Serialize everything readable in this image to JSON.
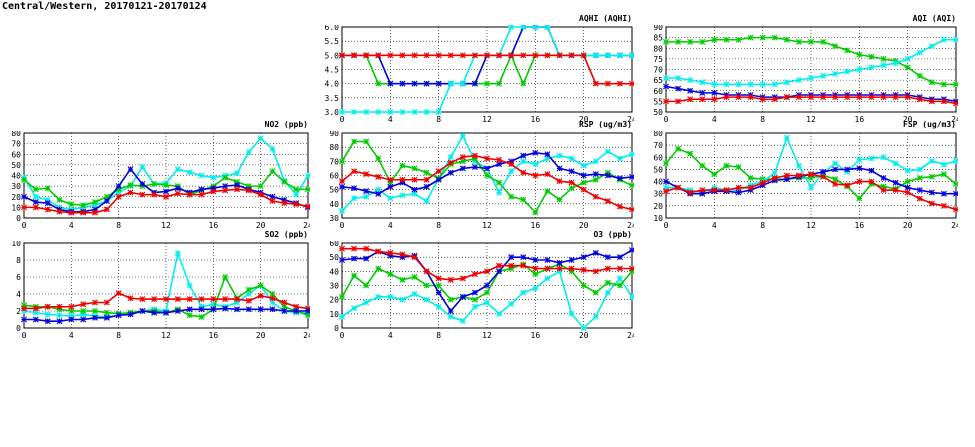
{
  "title": "Central/Western, 20170121-20170124",
  "colors": {
    "green": "#00cc00",
    "blue": "#0000dd",
    "red": "#ee0000",
    "cyan": "#00eeee"
  },
  "chart_data": [
    {
      "id": "aqhi",
      "type": "line",
      "title": "AQHI (AQHI)",
      "x": [
        0,
        1,
        2,
        3,
        4,
        5,
        6,
        7,
        8,
        9,
        10,
        11,
        12,
        13,
        14,
        15,
        16,
        17,
        18,
        19,
        20,
        21,
        22,
        23,
        24
      ],
      "xticks": [
        "0",
        "4",
        "8",
        "12",
        "16",
        "20",
        "24"
      ],
      "ylim": [
        3.0,
        6.0
      ],
      "yticks": [
        "3.0",
        "3.5",
        "4.0",
        "4.5",
        "5.0",
        "5.5",
        "6.0"
      ],
      "series": [
        {
          "color": "green",
          "values": [
            5,
            5,
            5,
            4,
            4,
            4,
            4,
            4,
            4,
            4,
            4,
            4,
            4,
            4,
            5,
            4,
            5,
            5,
            5,
            5,
            5,
            5,
            5,
            5,
            5
          ]
        },
        {
          "color": "blue",
          "values": [
            5,
            5,
            5,
            5,
            4,
            4,
            4,
            4,
            4,
            4,
            4,
            4,
            5,
            5,
            5,
            6,
            6,
            6,
            5,
            5,
            5,
            5,
            5,
            5,
            5
          ]
        },
        {
          "color": "cyan",
          "values": [
            3,
            3,
            3,
            3,
            3,
            3,
            3,
            3,
            3,
            4,
            4,
            5,
            5,
            5,
            6,
            6,
            6,
            6,
            5,
            5,
            5,
            5,
            5,
            5,
            5
          ]
        },
        {
          "color": "red",
          "values": [
            5,
            5,
            5,
            5,
            5,
            5,
            5,
            5,
            5,
            5,
            5,
            5,
            5,
            5,
            5,
            5,
            5,
            5,
            5,
            5,
            5,
            4,
            4,
            4,
            4
          ]
        }
      ]
    },
    {
      "id": "aqi",
      "type": "line",
      "title": "AQI (AQI)",
      "x": [
        0,
        1,
        2,
        3,
        4,
        5,
        6,
        7,
        8,
        9,
        10,
        11,
        12,
        13,
        14,
        15,
        16,
        17,
        18,
        19,
        20,
        21,
        22,
        23,
        24
      ],
      "xticks": [
        "0",
        "4",
        "8",
        "12",
        "16",
        "20",
        "24"
      ],
      "ylim": [
        50,
        90
      ],
      "yticks": [
        "50",
        "55",
        "60",
        "65",
        "70",
        "75",
        "80",
        "85",
        "90"
      ],
      "series": [
        {
          "color": "green",
          "values": [
            83,
            83,
            83,
            83,
            84,
            84,
            84,
            85,
            85,
            85,
            84,
            83,
            83,
            83,
            81,
            79,
            77,
            76,
            75,
            74,
            71,
            67,
            64,
            63,
            63
          ]
        },
        {
          "color": "cyan",
          "values": [
            66,
            66,
            65,
            64,
            63,
            63,
            63,
            63,
            63,
            63,
            64,
            65,
            66,
            67,
            68,
            69,
            70,
            71,
            72,
            73,
            75,
            78,
            81,
            84,
            84
          ]
        },
        {
          "color": "blue",
          "values": [
            62,
            61,
            60,
            59,
            59,
            58,
            58,
            58,
            57,
            57,
            57,
            58,
            58,
            58,
            58,
            58,
            58,
            58,
            58,
            58,
            58,
            57,
            56,
            56,
            55
          ]
        },
        {
          "color": "red",
          "values": [
            55,
            55,
            56,
            56,
            56,
            57,
            57,
            57,
            56,
            56,
            57,
            57,
            57,
            57,
            57,
            57,
            57,
            57,
            57,
            57,
            57,
            56,
            55,
            55,
            54
          ]
        }
      ]
    },
    {
      "id": "no2",
      "type": "line",
      "title": "NO2 (ppb)",
      "x": [
        0,
        1,
        2,
        3,
        4,
        5,
        6,
        7,
        8,
        9,
        10,
        11,
        12,
        13,
        14,
        15,
        16,
        17,
        18,
        19,
        20,
        21,
        22,
        23,
        24
      ],
      "xticks": [
        "0",
        "4",
        "8",
        "12",
        "16",
        "20",
        "24"
      ],
      "ylim": [
        0,
        80
      ],
      "yticks": [
        "0",
        "10",
        "20",
        "30",
        "40",
        "50",
        "60",
        "70",
        "80"
      ],
      "series": [
        {
          "color": "cyan",
          "values": [
            38,
            20,
            17,
            10,
            8,
            10,
            12,
            16,
            24,
            30,
            48,
            32,
            33,
            46,
            43,
            40,
            38,
            40,
            42,
            62,
            75,
            65,
            35,
            22,
            40
          ]
        },
        {
          "color": "green",
          "values": [
            36,
            27,
            28,
            17,
            13,
            12,
            15,
            20,
            27,
            31,
            30,
            32,
            31,
            30,
            22,
            26,
            30,
            38,
            34,
            30,
            30,
            44,
            34,
            27,
            27
          ]
        },
        {
          "color": "blue",
          "values": [
            20,
            15,
            14,
            8,
            6,
            6,
            8,
            16,
            30,
            46,
            32,
            24,
            25,
            28,
            24,
            27,
            28,
            30,
            31,
            27,
            24,
            20,
            17,
            14,
            10
          ]
        },
        {
          "color": "red",
          "values": [
            10,
            10,
            8,
            6,
            5,
            5,
            5,
            8,
            20,
            24,
            22,
            22,
            20,
            23,
            22,
            22,
            25,
            26,
            27,
            26,
            22,
            16,
            14,
            13,
            11
          ]
        }
      ]
    },
    {
      "id": "rsp",
      "type": "line",
      "title": "RSP (ug/m3)",
      "x": [
        0,
        1,
        2,
        3,
        4,
        5,
        6,
        7,
        8,
        9,
        10,
        11,
        12,
        13,
        14,
        15,
        16,
        17,
        18,
        19,
        20,
        21,
        22,
        23,
        24
      ],
      "xticks": [
        "0",
        "4",
        "8",
        "12",
        "16",
        "20",
        "24"
      ],
      "ylim": [
        30,
        90
      ],
      "yticks": [
        "30",
        "40",
        "50",
        "60",
        "70",
        "80",
        "90"
      ],
      "series": [
        {
          "color": "cyan",
          "values": [
            35,
            44,
            45,
            50,
            44,
            46,
            47,
            42,
            58,
            73,
            88,
            70,
            65,
            48,
            63,
            70,
            68,
            72,
            74,
            72,
            67,
            70,
            77,
            72,
            75
          ]
        },
        {
          "color": "green",
          "values": [
            70,
            84,
            84,
            72,
            55,
            67,
            65,
            62,
            58,
            68,
            70,
            72,
            60,
            55,
            45,
            43,
            34,
            49,
            43,
            51,
            55,
            57,
            62,
            57,
            53
          ]
        },
        {
          "color": "blue",
          "values": [
            52,
            51,
            49,
            47,
            52,
            55,
            50,
            52,
            57,
            62,
            65,
            66,
            65,
            68,
            70,
            74,
            76,
            75,
            65,
            63,
            60,
            61,
            60,
            58,
            59
          ]
        },
        {
          "color": "red",
          "values": [
            56,
            63,
            61,
            59,
            57,
            57,
            57,
            57,
            63,
            69,
            73,
            74,
            72,
            71,
            68,
            62,
            60,
            61,
            56,
            55,
            50,
            45,
            42,
            38,
            36
          ]
        }
      ]
    },
    {
      "id": "fsp",
      "type": "line",
      "title": "FSP (ug/m3)",
      "x": [
        0,
        1,
        2,
        3,
        4,
        5,
        6,
        7,
        8,
        9,
        10,
        11,
        12,
        13,
        14,
        15,
        16,
        17,
        18,
        19,
        20,
        21,
        22,
        23,
        24
      ],
      "xticks": [
        "0",
        "4",
        "8",
        "12",
        "16",
        "20",
        "24"
      ],
      "ylim": [
        10,
        80
      ],
      "yticks": [
        "10",
        "20",
        "30",
        "40",
        "50",
        "60",
        "70",
        "80"
      ],
      "series": [
        {
          "color": "green",
          "values": [
            55,
            67,
            63,
            53,
            46,
            53,
            52,
            43,
            42,
            42,
            42,
            43,
            43,
            45,
            42,
            36,
            26,
            38,
            36,
            34,
            40,
            43,
            44,
            46,
            38
          ]
        },
        {
          "color": "cyan",
          "values": [
            35,
            35,
            33,
            31,
            35,
            33,
            33,
            37,
            40,
            47,
            76,
            53,
            35,
            47,
            55,
            48,
            58,
            59,
            60,
            55,
            49,
            50,
            57,
            54,
            57
          ]
        },
        {
          "color": "blue",
          "values": [
            40,
            35,
            30,
            30,
            32,
            32,
            31,
            33,
            37,
            41,
            42,
            44,
            46,
            48,
            50,
            50,
            51,
            49,
            43,
            39,
            35,
            33,
            31,
            30,
            30
          ]
        },
        {
          "color": "red",
          "values": [
            32,
            35,
            31,
            33,
            33,
            33,
            35,
            35,
            39,
            43,
            45,
            45,
            46,
            44,
            38,
            37,
            40,
            40,
            33,
            33,
            31,
            26,
            22,
            20,
            17
          ]
        }
      ]
    },
    {
      "id": "so2",
      "type": "line",
      "title": "SO2 (ppb)",
      "x": [
        0,
        1,
        2,
        3,
        4,
        5,
        6,
        7,
        8,
        9,
        10,
        11,
        12,
        13,
        14,
        15,
        16,
        17,
        18,
        19,
        20,
        21,
        22,
        23,
        24
      ],
      "xticks": [
        "0",
        "4",
        "8",
        "12",
        "16",
        "20",
        "24"
      ],
      "ylim": [
        0,
        10
      ],
      "yticks": [
        "0",
        "2",
        "4",
        "6",
        "8",
        "10"
      ],
      "series": [
        {
          "color": "cyan",
          "values": [
            2.0,
            1.8,
            1.6,
            1.5,
            1.4,
            1.6,
            1.4,
            1.3,
            1.5,
            1.8,
            2.0,
            2.2,
            2.0,
            8.8,
            5.0,
            2.5,
            2.8,
            2.5,
            3.0,
            4.0,
            5.0,
            3.0,
            2.0,
            1.8,
            1.8
          ]
        },
        {
          "color": "green",
          "values": [
            2.7,
            2.5,
            2.5,
            2.2,
            2.0,
            2.0,
            2.0,
            1.8,
            1.7,
            1.8,
            2.0,
            2.0,
            1.8,
            2.2,
            1.5,
            1.3,
            2.2,
            6.0,
            3.5,
            4.5,
            5.0,
            4.0,
            2.5,
            2.0,
            1.5
          ]
        },
        {
          "color": "red",
          "values": [
            2.3,
            2.3,
            2.5,
            2.5,
            2.5,
            2.8,
            3.0,
            3.0,
            4.1,
            3.5,
            3.4,
            3.4,
            3.4,
            3.4,
            3.4,
            3.4,
            3.4,
            3.4,
            3.4,
            3.2,
            3.8,
            3.5,
            3.0,
            2.5,
            2.3
          ]
        },
        {
          "color": "blue",
          "values": [
            1.0,
            1.0,
            0.8,
            0.8,
            1.0,
            1.0,
            1.2,
            1.2,
            1.5,
            1.6,
            2.0,
            1.8,
            1.8,
            2.0,
            2.2,
            2.2,
            2.2,
            2.3,
            2.2,
            2.2,
            2.2,
            2.2,
            2.0,
            2.0,
            2.0
          ]
        }
      ]
    },
    {
      "id": "o3",
      "type": "line",
      "title": "O3 (ppb)",
      "x": [
        0,
        1,
        2,
        3,
        4,
        5,
        6,
        7,
        8,
        9,
        10,
        11,
        12,
        13,
        14,
        15,
        16,
        17,
        18,
        19,
        20,
        21,
        22,
        23,
        24
      ],
      "xticks": [
        "0",
        "4",
        "8",
        "12",
        "16",
        "20",
        "24"
      ],
      "ylim": [
        0,
        60
      ],
      "yticks": [
        "0",
        "10",
        "20",
        "30",
        "40",
        "50",
        "60"
      ],
      "series": [
        {
          "color": "cyan",
          "values": [
            8,
            14,
            18,
            22,
            22,
            20,
            24,
            20,
            15,
            8,
            5,
            15,
            18,
            10,
            17,
            25,
            28,
            35,
            40,
            10,
            0,
            8,
            25,
            35,
            22
          ]
        },
        {
          "color": "green",
          "values": [
            22,
            37,
            30,
            42,
            38,
            34,
            36,
            30,
            30,
            20,
            22,
            20,
            25,
            40,
            42,
            45,
            38,
            42,
            45,
            40,
            30,
            25,
            32,
            30,
            40
          ]
        },
        {
          "color": "blue",
          "values": [
            48,
            49,
            49,
            54,
            51,
            50,
            51,
            40,
            25,
            12,
            22,
            25,
            30,
            40,
            50,
            50,
            48,
            48,
            46,
            48,
            50,
            53,
            50,
            50,
            55
          ]
        },
        {
          "color": "red",
          "values": [
            56,
            56,
            56,
            54,
            53,
            52,
            50,
            40,
            35,
            34,
            35,
            38,
            40,
            44,
            44,
            44,
            42,
            42,
            42,
            42,
            41,
            40,
            42,
            42,
            42
          ]
        }
      ]
    }
  ]
}
